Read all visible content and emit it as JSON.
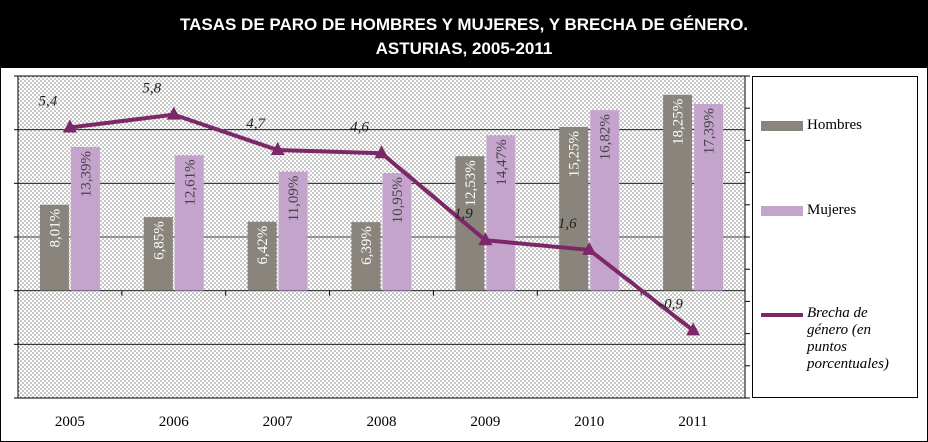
{
  "chart_data": {
    "type": "bar",
    "title": "TASAS DE PARO DE HOMBRES Y MUJERES, Y BRECHA DE GÉNERO.",
    "subtitle": "ASTURIAS, 2005-2011",
    "categories": [
      "2005",
      "2006",
      "2007",
      "2008",
      "2009",
      "2010",
      "2011"
    ],
    "series": [
      {
        "name": "Hombres",
        "type": "bar",
        "color": "#8a857c",
        "values": [
          8.01,
          6.85,
          6.42,
          6.39,
          12.53,
          15.25,
          18.25
        ],
        "value_labels": [
          "8,01%",
          "6,85%",
          "6,42%",
          "6,39%",
          "12,53%",
          "15,25%",
          "18,25%"
        ]
      },
      {
        "name": "Mujeres",
        "type": "bar",
        "color": "#c4a3cd",
        "values": [
          13.39,
          12.61,
          11.09,
          10.95,
          14.47,
          16.82,
          17.39
        ],
        "value_labels": [
          "13,39%",
          "12,61%",
          "11,09%",
          "10,95%",
          "14,47%",
          "16,82%",
          "17,39%"
        ]
      },
      {
        "name": "Brecha de género (en puntos porcentuales)",
        "type": "line",
        "axis": "y2",
        "color": "#7b2768",
        "values": [
          5.4,
          5.8,
          4.7,
          4.6,
          1.9,
          1.6,
          -0.9
        ],
        "value_labels": [
          "5,4",
          "5,8",
          "4,7",
          "4,6",
          "1,9",
          "1,6",
          "-0,9"
        ]
      }
    ],
    "ylim": [
      -10,
      20
    ],
    "yticks": [
      -10,
      -5,
      0,
      5,
      10,
      15,
      20
    ],
    "y2lim": [
      -3,
      7
    ],
    "y2ticks": [
      -3,
      -2,
      -1,
      0,
      1,
      2,
      3,
      4,
      5,
      6,
      7
    ],
    "grid": true
  }
}
